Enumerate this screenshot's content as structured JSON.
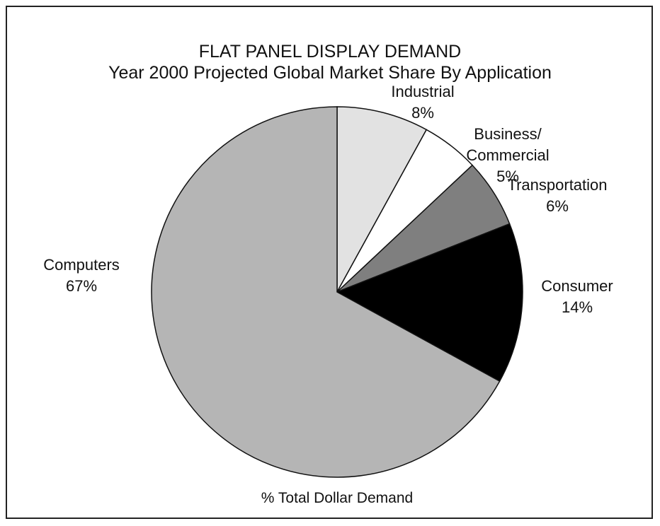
{
  "chart_data": {
    "type": "pie",
    "title": "FLAT PANEL DISPLAY DEMAND",
    "subtitle": "Year 2000 Projected Global Market Share By Application",
    "caption": "% Total Dollar Demand",
    "categories": [
      "Industrial",
      "Business/\nCommercial",
      "Transportation",
      "Consumer",
      "Computers"
    ],
    "values": [
      8,
      5,
      6,
      14,
      67
    ],
    "value_labels": [
      "8%",
      "5%",
      "6%",
      "14%",
      "67%"
    ],
    "colors": [
      "#e2e2e2",
      "#ffffff",
      "#7f7f7f",
      "#000000",
      "#b5b5b5"
    ]
  }
}
